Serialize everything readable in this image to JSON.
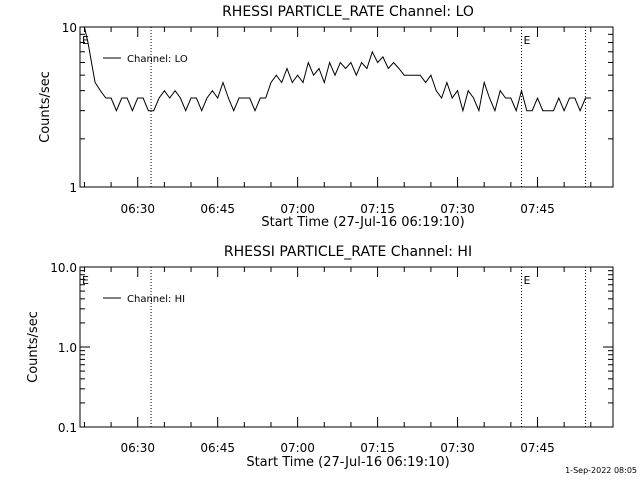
{
  "chart_data": [
    {
      "type": "line",
      "title": "RHESSI PARTICLE_RATE Channel: LO",
      "xlabel": "Start Time (27-Jul-16 06:19:10)",
      "ylabel": "Counts/sec",
      "yscale": "log",
      "ylim": [
        1,
        10
      ],
      "xlim": [
        "06:19:10",
        "07:59:10"
      ],
      "grid": false,
      "legend_position": "top-left",
      "x_ticks": [
        "06:30",
        "06:45",
        "07:00",
        "07:15",
        "07:30",
        "07:45"
      ],
      "y_ticks": [
        "1",
        "10"
      ],
      "markers": [
        {
          "time": "06:32:30",
          "label": ""
        },
        {
          "time": "07:42:00",
          "label": "E"
        },
        {
          "time": "07:54:00",
          "label": ""
        }
      ],
      "start_marker_label": "E",
      "series": [
        {
          "name": "Channel: LO",
          "points": [
            [
              "06:19:10",
              10
            ],
            [
              "06:20:00",
              10
            ],
            [
              "06:20:40",
              8
            ],
            [
              "06:21:20",
              6
            ],
            [
              "06:22:00",
              4.5
            ],
            [
              "06:23:00",
              4
            ],
            [
              "06:24:00",
              3.6
            ],
            [
              "06:25:00",
              3.6
            ],
            [
              "06:26:00",
              3
            ],
            [
              "06:27:00",
              3.6
            ],
            [
              "06:28:00",
              3.6
            ],
            [
              "06:29:00",
              3
            ],
            [
              "06:30:00",
              3.6
            ],
            [
              "06:31:00",
              3.6
            ],
            [
              "06:32:00",
              3
            ],
            [
              "06:33:00",
              3
            ],
            [
              "06:34:00",
              3.6
            ],
            [
              "06:35:00",
              4
            ],
            [
              "06:36:00",
              3.6
            ],
            [
              "06:37:00",
              4
            ],
            [
              "06:38:00",
              3.6
            ],
            [
              "06:39:00",
              3
            ],
            [
              "06:40:00",
              3.6
            ],
            [
              "06:41:00",
              3.6
            ],
            [
              "06:42:00",
              3
            ],
            [
              "06:43:00",
              3.6
            ],
            [
              "06:44:00",
              4
            ],
            [
              "06:45:00",
              3.6
            ],
            [
              "06:46:00",
              4.5
            ],
            [
              "06:47:00",
              3.6
            ],
            [
              "06:48:00",
              3
            ],
            [
              "06:49:00",
              3.6
            ],
            [
              "06:50:00",
              3.6
            ],
            [
              "06:51:00",
              3.6
            ],
            [
              "06:52:00",
              3
            ],
            [
              "06:53:00",
              3.6
            ],
            [
              "06:54:00",
              3.6
            ],
            [
              "06:55:00",
              4.5
            ],
            [
              "06:56:00",
              5
            ],
            [
              "06:57:00",
              4.5
            ],
            [
              "06:58:00",
              5.5
            ],
            [
              "06:59:00",
              4.5
            ],
            [
              "07:00:00",
              5
            ],
            [
              "07:01:00",
              4.5
            ],
            [
              "07:02:00",
              6
            ],
            [
              "07:03:00",
              5
            ],
            [
              "07:04:00",
              5.5
            ],
            [
              "07:05:00",
              4.5
            ],
            [
              "07:06:00",
              6
            ],
            [
              "07:07:00",
              5
            ],
            [
              "07:08:00",
              6
            ],
            [
              "07:09:00",
              5.5
            ],
            [
              "07:10:00",
              6
            ],
            [
              "07:11:00",
              5
            ],
            [
              "07:12:00",
              6
            ],
            [
              "07:13:00",
              5.5
            ],
            [
              "07:14:00",
              7
            ],
            [
              "07:15:00",
              6
            ],
            [
              "07:16:00",
              6.5
            ],
            [
              "07:17:00",
              5.5
            ],
            [
              "07:18:00",
              6
            ],
            [
              "07:19:00",
              5.5
            ],
            [
              "07:20:00",
              5
            ],
            [
              "07:21:00",
              5
            ],
            [
              "07:22:00",
              5
            ],
            [
              "07:23:00",
              5
            ],
            [
              "07:24:00",
              4.5
            ],
            [
              "07:25:00",
              5
            ],
            [
              "07:26:00",
              4
            ],
            [
              "07:27:00",
              3.6
            ],
            [
              "07:28:00",
              4.5
            ],
            [
              "07:29:00",
              3.6
            ],
            [
              "07:30:00",
              4
            ],
            [
              "07:31:00",
              3
            ],
            [
              "07:32:00",
              4
            ],
            [
              "07:33:00",
              3.6
            ],
            [
              "07:34:00",
              3
            ],
            [
              "07:35:00",
              4.5
            ],
            [
              "07:36:00",
              3.6
            ],
            [
              "07:37:00",
              3
            ],
            [
              "07:38:00",
              4
            ],
            [
              "07:39:00",
              3.6
            ],
            [
              "07:40:00",
              3.6
            ],
            [
              "07:41:00",
              3
            ],
            [
              "07:42:00",
              4
            ],
            [
              "07:43:00",
              3
            ],
            [
              "07:44:00",
              3
            ],
            [
              "07:45:00",
              3.6
            ],
            [
              "07:46:00",
              3
            ],
            [
              "07:47:00",
              3
            ],
            [
              "07:48:00",
              3
            ],
            [
              "07:49:00",
              3.6
            ],
            [
              "07:50:00",
              3
            ],
            [
              "07:51:00",
              3.6
            ],
            [
              "07:52:00",
              3.6
            ],
            [
              "07:53:00",
              3
            ],
            [
              "07:54:00",
              3.6
            ],
            [
              "07:55:00",
              3.6
            ]
          ]
        }
      ]
    },
    {
      "type": "line",
      "title": "RHESSI PARTICLE_RATE Channel: HI",
      "xlabel": "Start Time (27-Jul-16 06:19:10)",
      "ylabel": "Counts/sec",
      "yscale": "log",
      "ylim": [
        0.1,
        10
      ],
      "xlim": [
        "06:19:10",
        "07:59:10"
      ],
      "grid": false,
      "legend_position": "top-left",
      "x_ticks": [
        "06:30",
        "06:45",
        "07:00",
        "07:15",
        "07:30",
        "07:45"
      ],
      "y_ticks": [
        "0.1",
        "1.0",
        "10.0"
      ],
      "markers": [
        {
          "time": "06:32:30",
          "label": ""
        },
        {
          "time": "07:42:00",
          "label": "E"
        },
        {
          "time": "07:54:00",
          "label": ""
        }
      ],
      "start_marker_label": "E",
      "series": [
        {
          "name": "Channel: HI",
          "points": []
        }
      ]
    }
  ],
  "footer": {
    "timestamp": "1-Sep-2022 08:05"
  }
}
